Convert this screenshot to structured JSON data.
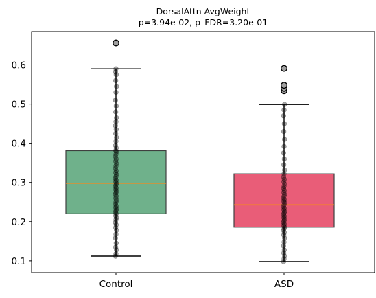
{
  "chart_data": {
    "type": "box",
    "title": "DorsalAttn AvgWeight",
    "subtitle": "p=3.94e-02, p_FDR=3.20e-01",
    "xlabel": "",
    "ylabel": "",
    "ylim": [
      0.07,
      0.685
    ],
    "yticks": [
      0.1,
      0.2,
      0.3,
      0.4,
      0.5,
      0.6
    ],
    "ytick_labels": [
      "0.1",
      "0.2",
      "0.3",
      "0.4",
      "0.5",
      "0.6"
    ],
    "categories": [
      "Control",
      "ASD"
    ],
    "grid": false,
    "legend": "none",
    "median_color": "#f5891e",
    "point_color": "#000000",
    "boxes": [
      {
        "category": "Control",
        "color": "#6aae87",
        "whisker_low": 0.112,
        "q1": 0.22,
        "median": 0.298,
        "q3": 0.381,
        "whisker_high": 0.59,
        "outliers": [
          0.656
        ],
        "points": [
          0.112,
          0.118,
          0.128,
          0.135,
          0.145,
          0.158,
          0.168,
          0.178,
          0.185,
          0.192,
          0.198,
          0.205,
          0.21,
          0.215,
          0.22,
          0.224,
          0.228,
          0.232,
          0.236,
          0.24,
          0.245,
          0.25,
          0.255,
          0.26,
          0.265,
          0.27,
          0.274,
          0.278,
          0.282,
          0.286,
          0.29,
          0.294,
          0.298,
          0.302,
          0.306,
          0.31,
          0.315,
          0.32,
          0.325,
          0.33,
          0.336,
          0.342,
          0.348,
          0.354,
          0.36,
          0.366,
          0.372,
          0.378,
          0.381,
          0.388,
          0.395,
          0.405,
          0.415,
          0.425,
          0.435,
          0.445,
          0.455,
          0.465,
          0.48,
          0.495,
          0.51,
          0.53,
          0.545,
          0.56,
          0.575,
          0.582,
          0.59,
          0.656
        ]
      },
      {
        "category": "ASD",
        "color": "#e85874",
        "whisker_low": 0.098,
        "q1": 0.186,
        "median": 0.243,
        "q3": 0.322,
        "whisker_high": 0.499,
        "outliers": [
          0.534,
          0.54,
          0.548,
          0.591
        ],
        "points": [
          0.098,
          0.105,
          0.112,
          0.12,
          0.128,
          0.138,
          0.148,
          0.158,
          0.166,
          0.172,
          0.178,
          0.182,
          0.186,
          0.19,
          0.194,
          0.198,
          0.202,
          0.206,
          0.21,
          0.214,
          0.218,
          0.222,
          0.226,
          0.23,
          0.234,
          0.238,
          0.243,
          0.248,
          0.252,
          0.256,
          0.26,
          0.265,
          0.27,
          0.275,
          0.28,
          0.285,
          0.29,
          0.296,
          0.302,
          0.308,
          0.314,
          0.322,
          0.332,
          0.345,
          0.36,
          0.375,
          0.392,
          0.41,
          0.43,
          0.45,
          0.47,
          0.485,
          0.499,
          0.534,
          0.54,
          0.548,
          0.591
        ]
      }
    ]
  }
}
